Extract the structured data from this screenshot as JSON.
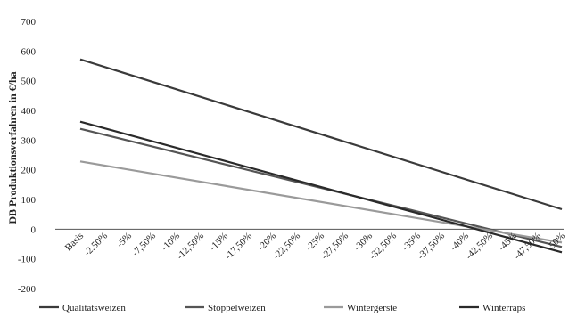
{
  "chart_data": {
    "type": "line",
    "ylabel": "DB Produktionsverfahren in €/ha",
    "xlabel": "",
    "ylim": [
      -200,
      700
    ],
    "yticks": [
      700,
      600,
      500,
      400,
      300,
      200,
      100,
      0,
      -100,
      -200
    ],
    "grid": false,
    "legend_position": "bottom",
    "categories": [
      "Basis",
      "-2,50%",
      "-5%",
      "-7,50%",
      "-10%",
      "-12,50%",
      "-15%",
      "-17,50%",
      "-20%",
      "-22,50%",
      "-25%",
      "-27,50%",
      "-30%",
      "-32,50%",
      "-35%",
      "-37,50%",
      "-40%",
      "-42,50%",
      "-45%",
      "-47,50%",
      "-50%"
    ],
    "series": [
      {
        "name": "Qualitätsweizen",
        "color": "#3a3a3a",
        "start": 572,
        "end": 67
      },
      {
        "name": "Stoppelweizen",
        "color": "#555555",
        "start": 338,
        "end": -60
      },
      {
        "name": "Wintergerste",
        "color": "#9a9a9a",
        "start": 228,
        "end": -45
      },
      {
        "name": "Winterraps",
        "color": "#2a2a2a",
        "start": 362,
        "end": -78
      }
    ]
  }
}
